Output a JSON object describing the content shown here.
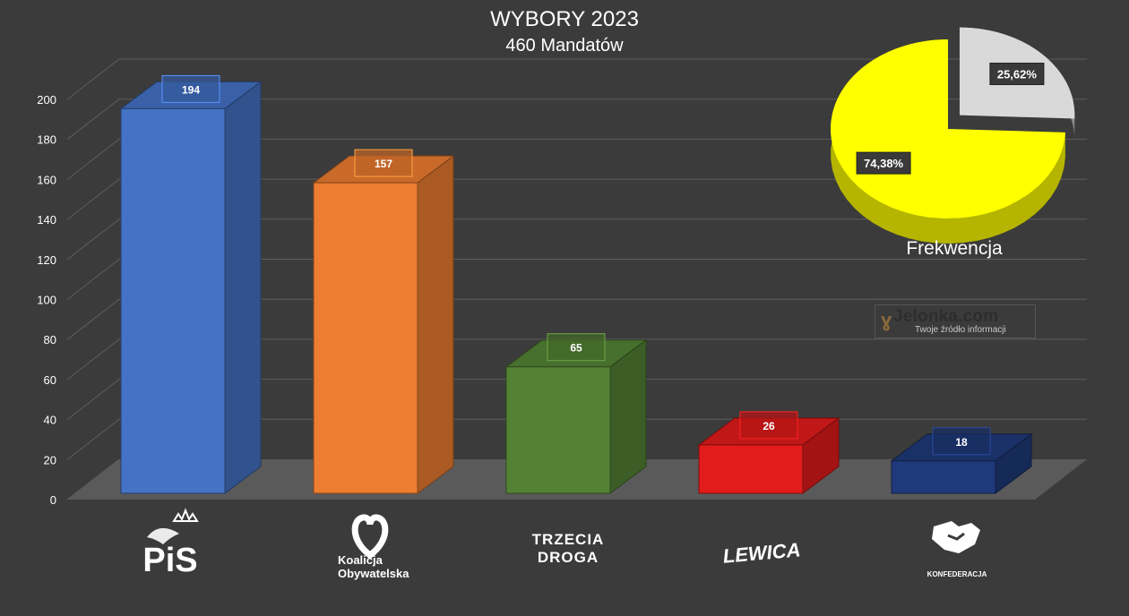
{
  "chart_data": [
    {
      "type": "bar",
      "title": "WYBORY 2023",
      "subtitle": "460 Mandatów",
      "categories": [
        "PiS",
        "Koalicja Obywatelska",
        "TRZECIA DROGA",
        "LEWICA",
        "KONFEDERACJA"
      ],
      "values": [
        194,
        157,
        65,
        26,
        18
      ],
      "colors": [
        "#4472c4",
        "#ed7d31",
        "#548235",
        "#e21b1b",
        "#1f3a7a"
      ],
      "ylim": [
        0,
        200
      ],
      "yticks": [
        0,
        20,
        40,
        60,
        80,
        100,
        120,
        140,
        160,
        180,
        200
      ],
      "grid": true,
      "style": "3d-column",
      "data_labels": [
        "194",
        "157",
        "65",
        "26",
        "18"
      ]
    },
    {
      "type": "pie",
      "title": "Frekwencja",
      "slices": [
        {
          "label": "74,38%",
          "value": 74.38,
          "color": "#ffff00"
        },
        {
          "label": "25,62%",
          "value": 25.62,
          "color": "#d9d9d9"
        }
      ],
      "style": "3d-exploded"
    }
  ],
  "logos": {
    "pis": "PiS",
    "ko_line1": "Koalicja",
    "ko_line2": "Obywatelska",
    "td_line1": "TRZECIA",
    "td_line2": "DROGA",
    "lewica": "LEWICA",
    "konfederacja": "KONFEDERACJA"
  },
  "watermark": {
    "main": "Jelonka.com",
    "sub": "Twoje źródło informacji"
  }
}
